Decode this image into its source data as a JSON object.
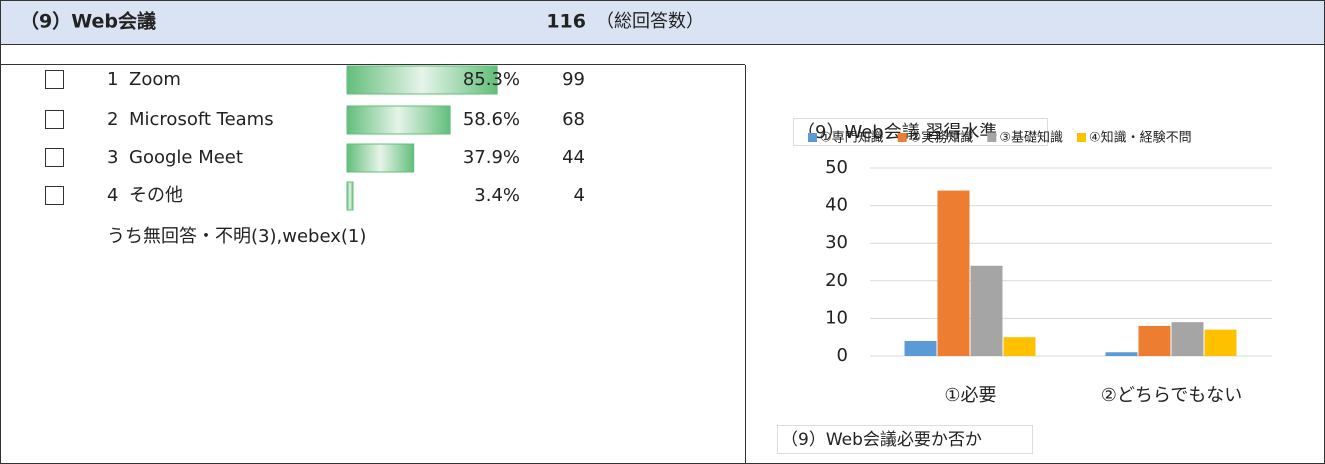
{
  "header": {
    "title": "（9）Web会議",
    "total": 116,
    "total_label": "（総回答数）"
  },
  "items": [
    {
      "number": 1,
      "label": "Zoom",
      "percent": 85.3,
      "percent_label": "85.3%",
      "count": 99
    },
    {
      "number": 2,
      "label": "Microsoft Teams",
      "percent": 58.6,
      "percent_label": "58.6%",
      "count": 68
    },
    {
      "number": 3,
      "label": "Google Meet",
      "percent": 37.9,
      "percent_label": "37.9%",
      "count": 44
    },
    {
      "number": 4,
      "label": "その他",
      "percent": 3.4,
      "percent_label": "3.4%",
      "count": 4
    }
  ],
  "note": "うち無回答・不明(3),webex(1)",
  "chart_data": {
    "type": "bar",
    "title": "（9）Web会議 習得水準",
    "xlabel": "（9）Web会議必要か否か",
    "categories": [
      "①必要",
      "②どちらでもない"
    ],
    "series": [
      {
        "name": "①専門知識",
        "color": "#5b9bd5",
        "values": [
          4,
          1
        ]
      },
      {
        "name": "②実務知識",
        "color": "#ed7d31",
        "values": [
          44,
          8
        ]
      },
      {
        "name": "③基礎知識",
        "color": "#a5a5a5",
        "values": [
          24,
          9
        ]
      },
      {
        "name": "④知識・経験不問",
        "color": "#ffc000",
        "values": [
          5,
          7
        ]
      }
    ],
    "ylim": [
      0,
      50
    ],
    "yticks": [
      0,
      10,
      20,
      30,
      40,
      50
    ],
    "grid": true,
    "legend": "top"
  }
}
